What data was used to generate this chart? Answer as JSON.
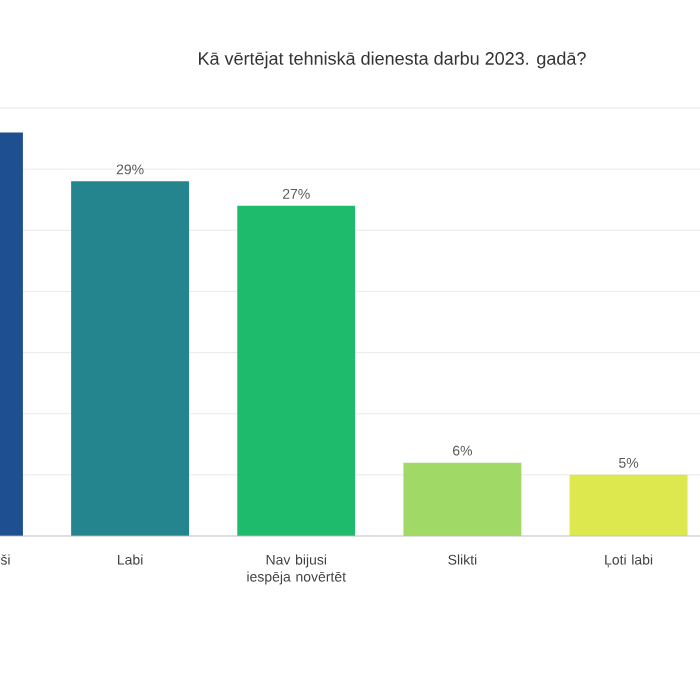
{
  "chart_data": {
    "type": "bar",
    "title": "Kā vērtējat tehniskā dienesta darbu 2023. gadā?",
    "categories": [
      "ši",
      "Labi",
      "Nav bijusi iespēja novērtēt",
      "Slikti",
      "Ļoti labi"
    ],
    "values": [
      33,
      29,
      27,
      6,
      5
    ],
    "value_labels": [
      null,
      "29%",
      "27%",
      "6%",
      "5%"
    ],
    "colors": [
      "#1d4f91",
      "#25858e",
      "#1fbb6d",
      "#a0d965",
      "#dde84f"
    ],
    "ylim": [
      0,
      35
    ],
    "yticks": [
      {
        "value": 0,
        "label": null
      },
      {
        "value": 5,
        "label": null
      },
      {
        "value": 10,
        "label": null
      },
      {
        "value": 15,
        "label": null
      },
      {
        "value": 20,
        "label": null
      },
      {
        "value": 25,
        "label": null
      },
      {
        "value": 30,
        "label": null
      },
      {
        "value": 35,
        "label": null
      }
    ],
    "grid": true
  }
}
